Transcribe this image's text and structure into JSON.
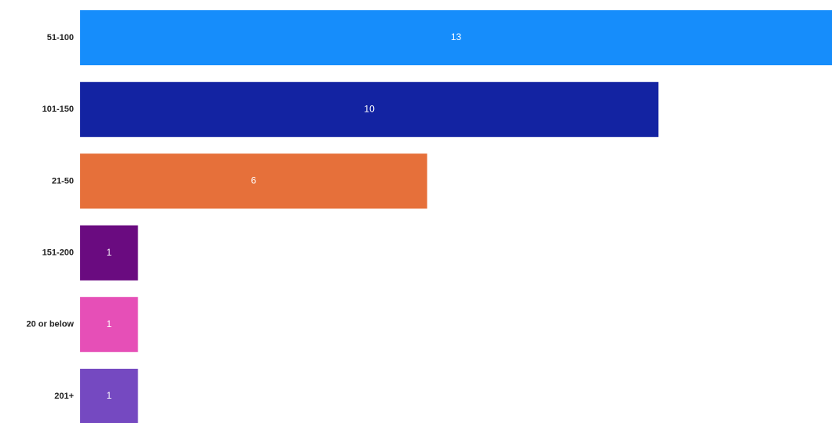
{
  "chart_data": {
    "type": "bar",
    "orientation": "horizontal",
    "title": "",
    "xlabel": "",
    "ylabel": "",
    "categories": [
      "51-100",
      "101-150",
      "21-50",
      "151-200",
      "20 or below",
      "201+"
    ],
    "values": [
      13,
      10,
      6,
      1,
      1,
      1
    ],
    "xlim": [
      0,
      13
    ],
    "grid": false,
    "legend": "none",
    "data_labels": true,
    "colors": [
      "#168dfb",
      "#1323a2",
      "#e6703a",
      "#6a0b80",
      "#e64fb7",
      "#7549c1"
    ]
  }
}
